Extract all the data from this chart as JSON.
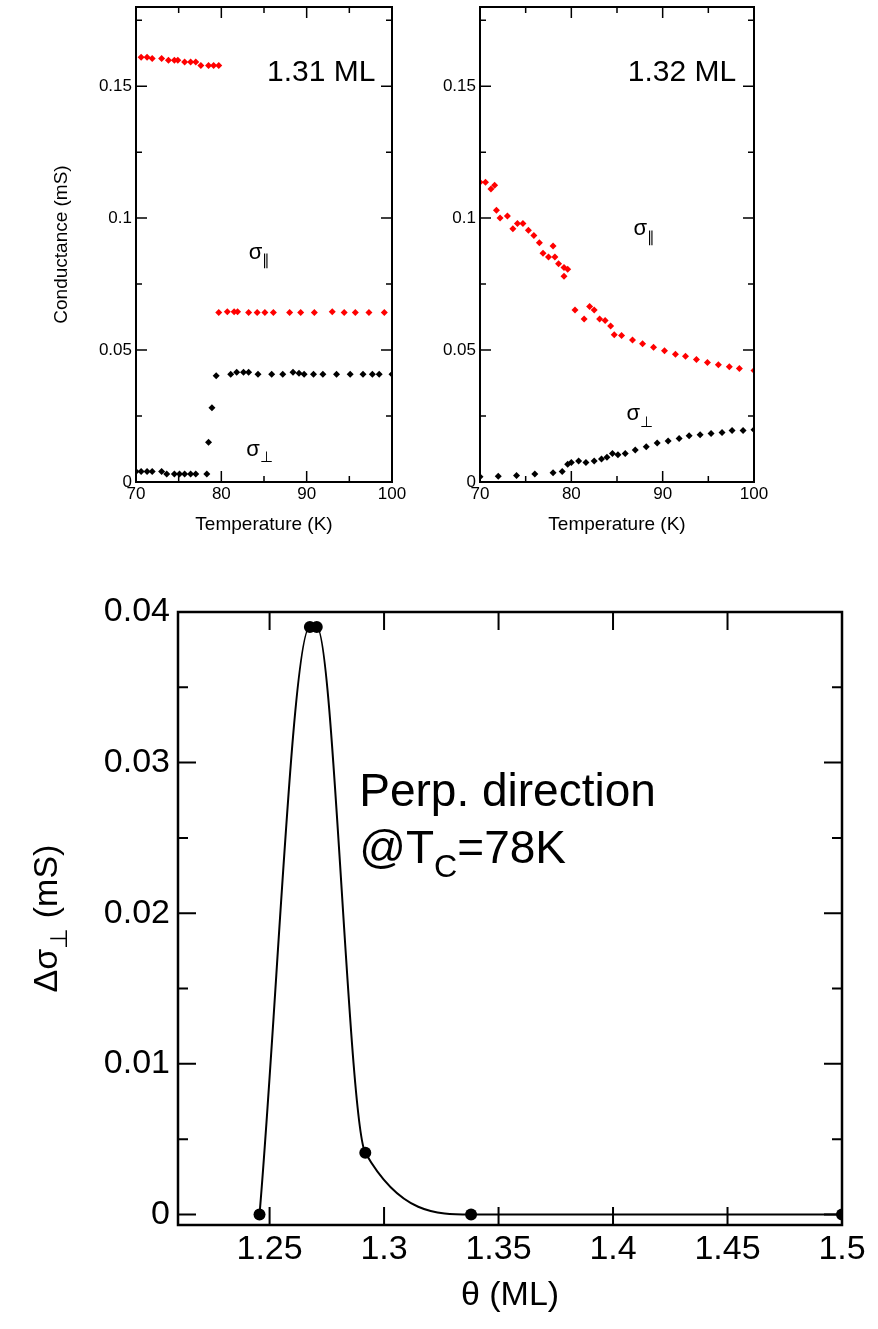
{
  "chart_data": [
    {
      "type": "scatter",
      "ylabel": "Conductance (mS)",
      "xlabel": "Temperature (K)",
      "marker": "diamond",
      "legend": false,
      "grid": false,
      "xlim": [
        70,
        100
      ],
      "xticks": [
        70,
        {
          "value": 75,
          "label": null
        },
        80,
        {
          "value": 85,
          "label": null
        },
        90,
        {
          "value": 95,
          "label": null
        },
        100
      ],
      "ylim": [
        0,
        0.18
      ],
      "yticks": [
        0,
        {
          "value": 0.025,
          "label": null
        },
        0.05,
        {
          "value": 0.075,
          "label": null
        },
        {
          "value": 0.1,
          "label": "0.1"
        },
        {
          "value": 0.125,
          "label": null
        },
        0.15,
        {
          "value": 0.175,
          "label": null
        }
      ],
      "annotations": [
        "1.31 ML",
        "σ$_{∥}$",
        "σ$_{⊥}$"
      ],
      "series": [
        {
          "color": "#ff0000",
          "x": [
            70.6,
            71.3,
            71.9,
            73,
            73.8,
            74.5,
            74.9,
            75.7,
            76.4,
            77,
            77.6,
            78.5,
            79.1,
            79.7,
            79.7,
            80.7,
            81.5,
            81.9,
            83.2,
            84.2,
            84.9,
            85.1,
            86.1,
            88,
            89.3,
            90.9,
            93,
            94.4,
            95.7,
            97.3,
            99.1
          ],
          "values": [
            0.161,
            0.161,
            0.1605,
            0.1605,
            0.1598,
            0.1598,
            0.1598,
            0.1592,
            0.1592,
            0.1592,
            0.1578,
            0.1578,
            0.1578,
            0.1578,
            0.0642,
            0.0645,
            0.0645,
            0.0645,
            0.0642,
            0.0642,
            null,
            0.0642,
            0.0642,
            0.0642,
            0.0642,
            0.0642,
            0.0645,
            0.0642,
            0.0642,
            0.0642,
            0.0642
          ]
        },
        {
          "color": "#000000",
          "x": [
            70,
            70.6,
            71.3,
            71.9,
            73,
            73.6,
            74.5,
            75.1,
            75.7,
            76.4,
            77,
            78.3,
            78.5,
            78.9,
            79.4,
            81.1,
            81.8,
            82.6,
            83.2,
            84.3,
            85.9,
            87.2,
            88.4,
            89.1,
            89.7,
            90.8,
            91.9,
            93.5,
            95.1,
            96.6,
            97.7,
            98.5,
            100
          ],
          "values": [
            0.004,
            0.004,
            0.004,
            0.004,
            0.004,
            0.003,
            0.003,
            0.003,
            0.003,
            0.003,
            0.003,
            0.003,
            0.0151,
            0.0281,
            0.0403,
            0.0408,
            0.0416,
            0.0416,
            0.0416,
            0.0408,
            0.0408,
            0.0408,
            0.0416,
            0.0412,
            0.0408,
            0.0408,
            0.0408,
            0.0408,
            0.0408,
            0.0408,
            0.0408,
            0.0408,
            0.0408
          ]
        }
      ]
    },
    {
      "type": "scatter",
      "xlabel": "Temperature (K)",
      "marker": "diamond",
      "legend": false,
      "grid": false,
      "xlim": [
        70,
        100
      ],
      "xticks": [
        70,
        {
          "value": 75,
          "label": null
        },
        80,
        {
          "value": 85,
          "label": null
        },
        90,
        {
          "value": 95,
          "label": null
        },
        100
      ],
      "ylim": [
        0,
        0.18
      ],
      "yticks": [
        0,
        {
          "value": 0.025,
          "label": null
        },
        0.05,
        {
          "value": 0.075,
          "label": null
        },
        {
          "value": 0.1,
          "label": "0.1"
        },
        {
          "value": 0.125,
          "label": null
        },
        0.15,
        {
          "value": 0.175,
          "label": null
        }
      ],
      "annotations": [
        "1.32 ML",
        "σ$_{∥}$",
        "σ$_{⊥}$"
      ],
      "series": [
        {
          "color": "#ff0000",
          "x": [
            70,
            70.6,
            71.2,
            71.6,
            71.8,
            72.2,
            73,
            73.6,
            74.1,
            74.7,
            75.3,
            75.9,
            76.5,
            76.9,
            77.5,
            78,
            78.2,
            78.6,
            79.2,
            79.2,
            79.6,
            80.4,
            81.4,
            82,
            82.5,
            83.1,
            83.7,
            84.3,
            84.7,
            85.5,
            86.7,
            87.8,
            89,
            90.2,
            91.4,
            92.5,
            93.7,
            94.9,
            96.1,
            97.3,
            98.4,
            100
          ],
          "values": [
            0.1136,
            0.1136,
            0.111,
            0.1125,
            0.103,
            0.1,
            0.1008,
            0.096,
            0.098,
            0.098,
            0.0954,
            0.0934,
            0.0907,
            0.0867,
            0.0853,
            0.0894,
            0.0853,
            0.0827,
            0.0813,
            0.078,
            0.0806,
            0.0652,
            0.0618,
            0.0665,
            0.0652,
            0.0618,
            0.0612,
            0.0591,
            0.0558,
            0.0555,
            0.0538,
            0.0524,
            0.0511,
            0.0497,
            0.0484,
            0.0477,
            0.0464,
            0.0453,
            0.0444,
            0.0437,
            0.043,
            0.0423
          ]
        },
        {
          "color": "#000000",
          "x": [
            70,
            72,
            74,
            76,
            78,
            79,
            79.6,
            80,
            80.8,
            81.6,
            82.5,
            83.3,
            83.9,
            84.5,
            85.1,
            85.9,
            87,
            88.2,
            89.4,
            90.6,
            91.8,
            92.9,
            94.1,
            95.3,
            96.5,
            97.6,
            98.8,
            100
          ],
          "values": [
            0.002,
            0.0022,
            0.0025,
            0.003,
            0.0035,
            0.004,
            0.0067,
            0.0074,
            0.008,
            0.0074,
            0.008,
            0.0087,
            0.0094,
            0.0108,
            0.0103,
            0.0108,
            0.0121,
            0.0134,
            0.0148,
            0.0155,
            0.0165,
            0.0175,
            0.0179,
            0.0184,
            0.0188,
            0.0195,
            0.0195,
            0.0198
          ]
        }
      ]
    },
    {
      "type": "line",
      "ylabel": "Δσ$_{⊥}$ (mS)",
      "xlabel": "θ (ML)",
      "marker": "circle",
      "legend": false,
      "grid": false,
      "xlim": [
        1.21,
        1.5
      ],
      "xticks": [
        1.25,
        {
          "value": 1.3,
          "label": "1.3"
        },
        1.35,
        {
          "value": 1.4,
          "label": "1.4"
        },
        1.45,
        {
          "value": 1.5,
          "label": "1.5"
        }
      ],
      "ylim": [
        -0.0007,
        0.04
      ],
      "yticks": [
        {
          "value": 0,
          "label": "0"
        },
        {
          "value": 0.005,
          "label": null
        },
        0.01,
        {
          "value": 0.015,
          "label": null
        },
        0.02,
        {
          "value": 0.025,
          "label": null
        },
        0.03,
        {
          "value": 0.035,
          "label": null
        },
        0.04
      ],
      "annotations": [
        "Perp. direction",
        "@T$_{C}$=78K"
      ],
      "series": [
        {
          "color": "#000000",
          "x": [
            1.2456,
            1.2676,
            1.2706,
            1.2918,
            1.338,
            1.5
          ],
          "values": [
            0,
            0.039,
            0.039,
            0.0041,
            0,
            0
          ]
        }
      ]
    }
  ]
}
